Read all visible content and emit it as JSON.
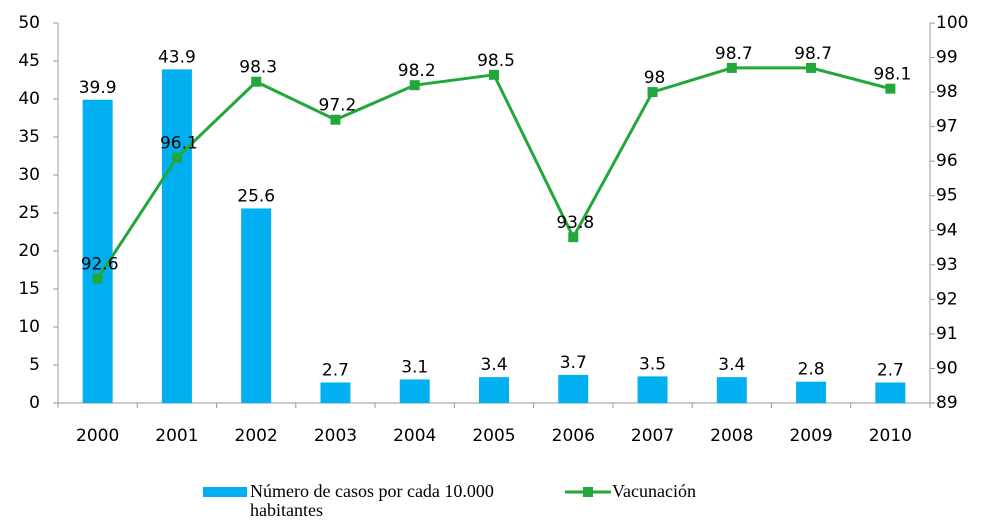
{
  "chart_data": {
    "type": "bar",
    "categories": [
      "2000",
      "2001",
      "2002",
      "2003",
      "2004",
      "2005",
      "2006",
      "2007",
      "2008",
      "2009",
      "2010"
    ],
    "series": [
      {
        "name": "Número de casos por cada 10.000 habitantes",
        "type": "bar",
        "color": "#00b0f0",
        "values": [
          39.9,
          43.9,
          25.6,
          2.7,
          3.1,
          3.4,
          3.7,
          3.5,
          3.4,
          2.8,
          2.7
        ]
      },
      {
        "name": "Vacunación",
        "type": "line",
        "axis": "y2",
        "color": "#22a83a",
        "values": [
          92.6,
          96.1,
          98.3,
          97.2,
          98.2,
          98.5,
          93.8,
          98,
          98.7,
          98.7,
          98.1
        ]
      }
    ],
    "ylim": [
      0,
      50
    ],
    "yticks": [
      0,
      5,
      10,
      15,
      20,
      25,
      30,
      35,
      40,
      45,
      50
    ],
    "y2lim": [
      89,
      100
    ],
    "y2ticks": [
      89,
      90,
      91,
      92,
      93,
      94,
      95,
      96,
      97,
      98,
      99,
      100
    ],
    "legend": "bottom"
  }
}
